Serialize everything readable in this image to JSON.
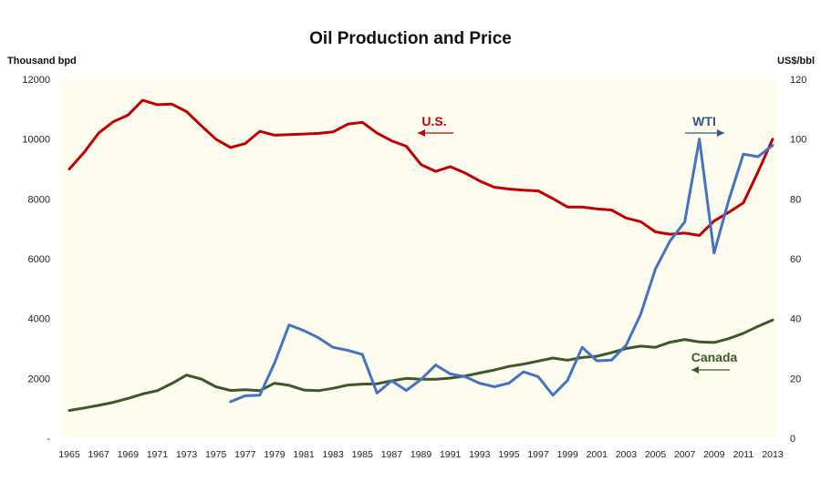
{
  "chart_data": {
    "type": "line",
    "title": "Oil Production and Price",
    "y_left_label": "Thousand bpd",
    "y_right_label": "US$/bbl",
    "y_left_range": [
      0,
      12000
    ],
    "y_right_range": [
      0,
      120
    ],
    "y_left_ticks": [
      "-",
      "2000",
      "4000",
      "6000",
      "8000",
      "10000",
      "12000"
    ],
    "y_right_ticks": [
      "0",
      "20",
      "40",
      "60",
      "80",
      "100",
      "120"
    ],
    "x_tick_labels": [
      "1965",
      "1967",
      "1969",
      "1971",
      "1973",
      "1975",
      "1977",
      "1979",
      "1981",
      "1983",
      "1985",
      "1987",
      "1989",
      "1991",
      "1993",
      "1995",
      "1997",
      "1999",
      "2001",
      "2003",
      "2005",
      "2007",
      "2009",
      "2011",
      "2013"
    ],
    "background_color": "#fefdf0",
    "grid": false,
    "series": [
      {
        "name": "U.S.",
        "axis": "left",
        "color": "#c00000",
        "x": [
          1965,
          1966,
          1967,
          1968,
          1969,
          1970,
          1971,
          1972,
          1973,
          1974,
          1975,
          1976,
          1977,
          1978,
          1979,
          1980,
          1981,
          1982,
          1983,
          1984,
          1985,
          1986,
          1987,
          1988,
          1989,
          1990,
          1991,
          1992,
          1993,
          1994,
          1995,
          1996,
          1997,
          1998,
          1999,
          2000,
          2001,
          2002,
          2003,
          2004,
          2005,
          2006,
          2007,
          2008,
          2009,
          2010,
          2011,
          2012,
          2013
        ],
        "y": [
          9000,
          9550,
          10200,
          10580,
          10800,
          11300,
          11150,
          11170,
          10920,
          10450,
          10000,
          9720,
          9850,
          10260,
          10130,
          10150,
          10170,
          10190,
          10240,
          10500,
          10560,
          10200,
          9940,
          9760,
          9150,
          8920,
          9080,
          8870,
          8600,
          8390,
          8330,
          8290,
          8270,
          8010,
          7730,
          7730,
          7670,
          7630,
          7360,
          7240,
          6900,
          6820,
          6860,
          6780,
          7260,
          7550,
          7870,
          8900,
          10000
        ]
      },
      {
        "name": "Canada",
        "axis": "left",
        "color": "#3a5a2a",
        "x": [
          1965,
          1966,
          1967,
          1968,
          1969,
          1970,
          1971,
          1972,
          1973,
          1974,
          1975,
          1976,
          1977,
          1978,
          1979,
          1980,
          1981,
          1982,
          1983,
          1984,
          1985,
          1986,
          1987,
          1988,
          1989,
          1990,
          1991,
          1992,
          1993,
          1994,
          1995,
          1996,
          1997,
          1998,
          1999,
          2000,
          2001,
          2002,
          2003,
          2004,
          2005,
          2006,
          2007,
          2008,
          2009,
          2010,
          2011,
          2012,
          2013
        ],
        "y": [
          930,
          1010,
          1100,
          1200,
          1330,
          1480,
          1590,
          1830,
          2110,
          1980,
          1720,
          1600,
          1620,
          1590,
          1840,
          1770,
          1610,
          1590,
          1670,
          1780,
          1810,
          1820,
          1920,
          2000,
          1970,
          1970,
          2010,
          2080,
          2180,
          2280,
          2400,
          2480,
          2580,
          2680,
          2610,
          2700,
          2740,
          2860,
          3000,
          3080,
          3040,
          3210,
          3300,
          3220,
          3200,
          3330,
          3510,
          3740,
          3950
        ]
      },
      {
        "name": "WTI",
        "axis": "right",
        "color": "#4472c4",
        "x": [
          1976,
          1977,
          1978,
          1979,
          1980,
          1981,
          1982,
          1983,
          1984,
          1985,
          1986,
          1987,
          1988,
          1989,
          1990,
          1991,
          1992,
          1993,
          1994,
          1995,
          1996,
          1997,
          1998,
          1999,
          2000,
          2001,
          2002,
          2003,
          2004,
          2005,
          2006,
          2007,
          2008,
          2009,
          2010,
          2011,
          2012,
          2013
        ],
        "y": [
          12.2,
          14.2,
          14.4,
          25.1,
          37.9,
          36.0,
          33.6,
          30.4,
          29.4,
          28.0,
          15.1,
          19.2,
          16.0,
          19.6,
          24.5,
          21.5,
          20.6,
          18.4,
          17.2,
          18.4,
          22.2,
          20.6,
          14.4,
          19.3,
          30.4,
          25.9,
          26.1,
          31.1,
          41.5,
          56.6,
          66.0,
          72.3,
          100.0,
          61.9,
          79.5,
          95.0,
          94.1,
          97.9
        ]
      }
    ],
    "annotations": [
      {
        "text": "U.S.",
        "color": "#c00000",
        "arrow": "left"
      },
      {
        "text": "WTI",
        "color": "#2f5597",
        "arrow": "right"
      },
      {
        "text": "Canada",
        "color": "#3a5a2a",
        "arrow": "left"
      }
    ]
  }
}
